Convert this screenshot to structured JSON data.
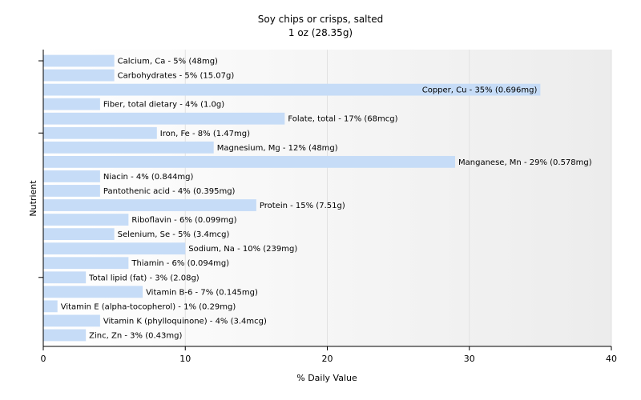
{
  "chart_data": {
    "type": "bar",
    "orientation": "horizontal",
    "title": "Soy chips or crisps, salted",
    "subtitle": "1 oz (28.35g)",
    "xlabel": "% Daily Value",
    "ylabel": "Nutrient",
    "xlim": [
      0,
      40
    ],
    "xticks": [
      "0",
      "10",
      "20",
      "30",
      "40"
    ],
    "grid": true,
    "bar_color": "#c6dcf7",
    "categories": [
      "Calcium, Ca",
      "Carbohydrates",
      "Copper, Cu",
      "Fiber, total dietary",
      "Folate, total",
      "Iron, Fe",
      "Magnesium, Mg",
      "Manganese, Mn",
      "Niacin",
      "Pantothenic acid",
      "Protein",
      "Riboflavin",
      "Selenium, Se",
      "Sodium, Na",
      "Thiamin",
      "Total lipid (fat)",
      "Vitamin B-6",
      "Vitamin E (alpha-tocopherol)",
      "Vitamin K (phylloquinone)",
      "Zinc, Zn"
    ],
    "values": [
      5,
      5,
      35,
      4,
      17,
      8,
      12,
      29,
      4,
      4,
      15,
      6,
      5,
      10,
      6,
      3,
      7,
      1,
      4,
      3
    ],
    "labels": [
      "Calcium, Ca - 5% (48mg)",
      "Carbohydrates - 5% (15.07g)",
      "Copper, Cu - 35% (0.696mg)",
      "Fiber, total dietary - 4% (1.0g)",
      "Folate, total - 17% (68mcg)",
      "Iron, Fe - 8% (1.47mg)",
      "Magnesium, Mg - 12% (48mg)",
      "Manganese, Mn - 29% (0.578mg)",
      "Niacin - 4% (0.844mg)",
      "Pantothenic acid - 4% (0.395mg)",
      "Protein - 15% (7.51g)",
      "Riboflavin - 6% (0.099mg)",
      "Selenium, Se - 5% (3.4mcg)",
      "Sodium, Na - 10% (239mg)",
      "Thiamin - 6% (0.094mg)",
      "Total lipid (fat) - 3% (2.08g)",
      "Vitamin B-6 - 7% (0.145mg)",
      "Vitamin E (alpha-tocopherol) - 1% (0.29mg)",
      "Vitamin K (phylloquinone) - 4% (3.4mcg)",
      "Zinc, Zn - 3% (0.43mg)"
    ],
    "inside_label_categories": [
      "Copper, Cu"
    ]
  }
}
